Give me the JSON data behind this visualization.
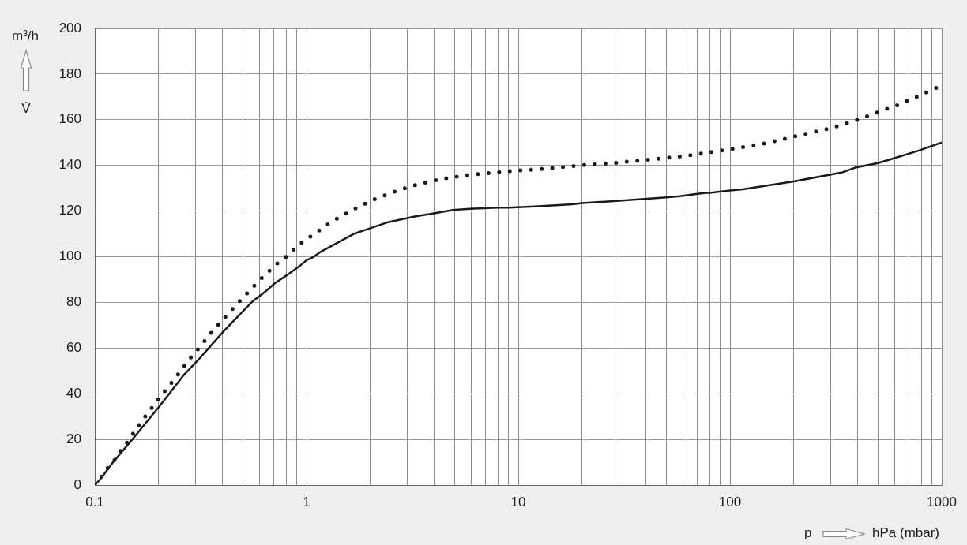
{
  "chart_data": {
    "type": "line",
    "log": "x",
    "grid": true,
    "xlabel": "p",
    "ylabel": "V̇",
    "annotations": [
      "m³/h",
      "hPa (mbar)"
    ],
    "xlim": [
      0.1,
      1000
    ],
    "ylim": [
      0,
      200
    ],
    "xticks": [
      0.1,
      {
        "value": 0.2,
        "label": null
      },
      {
        "value": 0.3,
        "label": null
      },
      {
        "value": 0.4,
        "label": null
      },
      {
        "value": 0.5,
        "label": null
      },
      {
        "value": 0.6,
        "label": null
      },
      {
        "value": 0.7,
        "label": null
      },
      {
        "value": 0.8,
        "label": null
      },
      {
        "value": 0.9,
        "label": null
      },
      1,
      {
        "value": 2,
        "label": null
      },
      {
        "value": 3,
        "label": null
      },
      {
        "value": 4,
        "label": null
      },
      {
        "value": 5,
        "label": null
      },
      {
        "value": 6,
        "label": null
      },
      {
        "value": 7,
        "label": null
      },
      {
        "value": 8,
        "label": null
      },
      {
        "value": 9,
        "label": null
      },
      10,
      {
        "value": 20,
        "label": null
      },
      {
        "value": 30,
        "label": null
      },
      {
        "value": 40,
        "label": null
      },
      {
        "value": 50,
        "label": null
      },
      {
        "value": 60,
        "label": null
      },
      {
        "value": 70,
        "label": null
      },
      {
        "value": 80,
        "label": null
      },
      {
        "value": 90,
        "label": null
      },
      100,
      {
        "value": 200,
        "label": null
      },
      {
        "value": 300,
        "label": null
      },
      {
        "value": 400,
        "label": null
      },
      {
        "value": 500,
        "label": null
      },
      {
        "value": 600,
        "label": null
      },
      {
        "value": 700,
        "label": null
      },
      {
        "value": 800,
        "label": null
      },
      {
        "value": 900,
        "label": null
      },
      1000
    ],
    "yticks": [
      0,
      20,
      40,
      60,
      80,
      100,
      120,
      140,
      160,
      180,
      200
    ],
    "series": [
      {
        "color": "#1a1a1a",
        "line_style": "solid",
        "x": [
          0.1,
          0.106,
          0.122,
          0.149,
          0.2,
          0.265,
          0.306,
          0.407,
          0.557,
          0.644,
          0.711,
          0.81,
          0.93,
          1.0,
          1.06,
          1.16,
          1.27,
          1.67,
          2.0,
          2.4,
          3.2,
          4.0,
          4.9,
          5.9,
          8.0,
          9.0,
          12,
          18,
          20,
          30,
          50,
          58,
          69,
          77,
          80,
          100,
          115,
          200,
          300,
          340,
          390,
          500,
          590,
          780,
          1000
        ],
        "values": [
          0,
          2.5,
          10,
          19.5,
          34,
          48.5,
          54.5,
          67.5,
          80.5,
          85,
          88.5,
          92,
          96,
          98.5,
          99.5,
          102,
          104,
          110,
          112.5,
          115,
          117.5,
          119,
          120.5,
          121,
          121.5,
          121.5,
          122,
          123,
          123.5,
          124.5,
          126,
          126.5,
          127.5,
          128,
          128,
          129,
          129.5,
          133,
          136,
          137,
          139,
          141,
          143,
          146.5,
          150
        ]
      },
      {
        "color": "#1a1a1a",
        "line_style": "dotted",
        "x": [
          0.1,
          0.106,
          0.114,
          0.123,
          0.132,
          0.143,
          0.165,
          0.192,
          0.207,
          0.243,
          0.282,
          0.307,
          0.361,
          0.426,
          0.506,
          0.603,
          0.726,
          0.8,
          0.877,
          0.96,
          1.07,
          1.32,
          1.65,
          2.07,
          2.6,
          3.3,
          4.3,
          5.5,
          7.0,
          9.1,
          13.3,
          19.4,
          28,
          41,
          60,
          77,
          99,
          144,
          209,
          304,
          388,
          491,
          622,
          782,
          1000
        ],
        "values": [
          0,
          3,
          7,
          10.5,
          15,
          19,
          27.5,
          35.5,
          39.5,
          47.5,
          55.5,
          59.5,
          67.5,
          75,
          82.5,
          90,
          97,
          100,
          103.5,
          106.5,
          109.5,
          115.5,
          120.5,
          125,
          128.5,
          131.5,
          134,
          135.5,
          136.5,
          137.5,
          138.5,
          140,
          141,
          142.5,
          144,
          145.5,
          147,
          149.5,
          153,
          156.5,
          159.5,
          163,
          166.5,
          170.5,
          175
        ]
      }
    ]
  }
}
